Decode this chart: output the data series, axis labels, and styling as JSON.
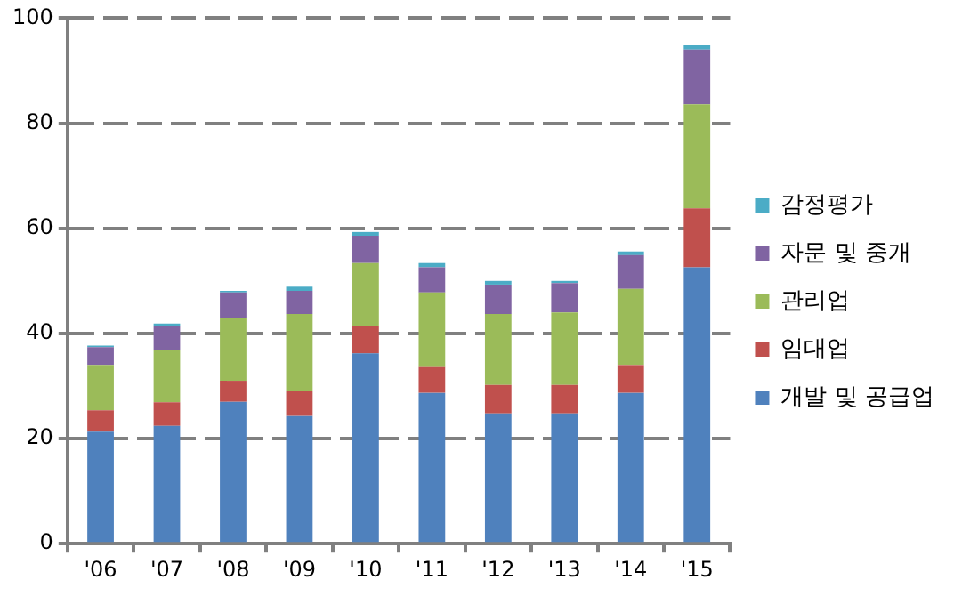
{
  "chart_data": {
    "type": "bar",
    "stacked": true,
    "categories": [
      "'06",
      "'07",
      "'08",
      "'09",
      "'10",
      "'11",
      "'12",
      "'13",
      "'14",
      "'15"
    ],
    "series": [
      {
        "name": "개발 및 공급업",
        "color": "#4f81bd",
        "values": [
          21.3,
          22.4,
          27.0,
          24.3,
          36.2,
          28.7,
          24.8,
          24.8,
          28.7,
          52.6
        ]
      },
      {
        "name": "임대업",
        "color": "#c0504d",
        "values": [
          4.1,
          4.5,
          4.0,
          4.8,
          5.2,
          4.9,
          5.4,
          5.4,
          5.3,
          11.2
        ]
      },
      {
        "name": "관리업",
        "color": "#9bbb59",
        "values": [
          8.6,
          10.0,
          11.9,
          14.6,
          12.0,
          14.2,
          13.5,
          13.8,
          14.5,
          19.8
        ]
      },
      {
        "name": "자문 및 중개",
        "color": "#8064a2",
        "values": [
          3.4,
          4.5,
          4.9,
          4.4,
          5.2,
          4.8,
          5.6,
          5.6,
          6.4,
          10.4
        ]
      },
      {
        "name": "감정평가",
        "color": "#4bacc6",
        "values": [
          0.3,
          0.5,
          0.3,
          0.8,
          0.7,
          0.8,
          0.7,
          0.4,
          0.7,
          0.8
        ]
      }
    ],
    "ylim": [
      0,
      100
    ],
    "yticks": [
      0,
      20,
      40,
      60,
      80,
      100
    ],
    "grid": "y",
    "legend": "right"
  }
}
